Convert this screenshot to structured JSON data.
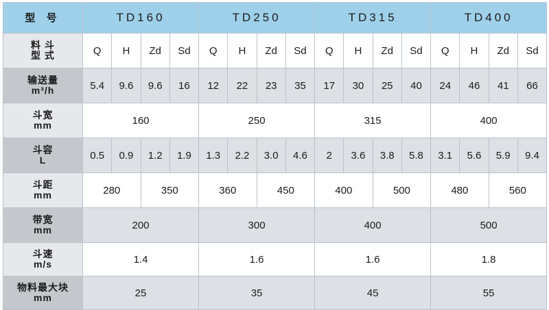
{
  "header": {
    "type_label": "型 号",
    "models": [
      "TD160",
      "TD250",
      "TD315",
      "TD400"
    ]
  },
  "rows": {
    "hopper_type": {
      "label": "料 斗\n型 式",
      "values": [
        "Q",
        "H",
        "Zd",
        "Sd",
        "Q",
        "H",
        "Zd",
        "Sd",
        "Q",
        "H",
        "Zd",
        "Sd",
        "Q",
        "H",
        "Zd",
        "Sd"
      ]
    },
    "capacity": {
      "label": "输送量\nm³/h",
      "values": [
        "5.4",
        "9.6",
        "9.6",
        "16",
        "12",
        "22",
        "23",
        "35",
        "17",
        "30",
        "25",
        "40",
        "24",
        "46",
        "41",
        "66"
      ]
    },
    "bucket_width": {
      "label": "斗宽\nmm",
      "values": [
        "160",
        "250",
        "315",
        "400"
      ]
    },
    "bucket_volume": {
      "label": "斗容\nL",
      "values": [
        "0.5",
        "0.9",
        "1.2",
        "1.9",
        "1.3",
        "2.2",
        "3.0",
        "4.6",
        "2",
        "3.6",
        "3.8",
        "5.8",
        "3.1",
        "5.6",
        "5.9",
        "9.4"
      ]
    },
    "bucket_pitch": {
      "label": "斗距\nmm",
      "values": [
        "280",
        "350",
        "360",
        "450",
        "400",
        "500",
        "480",
        "560"
      ]
    },
    "belt_width": {
      "label": "带宽\nmm",
      "values": [
        "200",
        "300",
        "400",
        "500"
      ]
    },
    "bucket_speed": {
      "label": "斗速\nm/s",
      "values": [
        "1.4",
        "1.6",
        "1.6",
        "1.8"
      ]
    },
    "max_lump": {
      "label": "物料最大块\nmm",
      "values": [
        "25",
        "35",
        "45",
        "55"
      ]
    }
  }
}
